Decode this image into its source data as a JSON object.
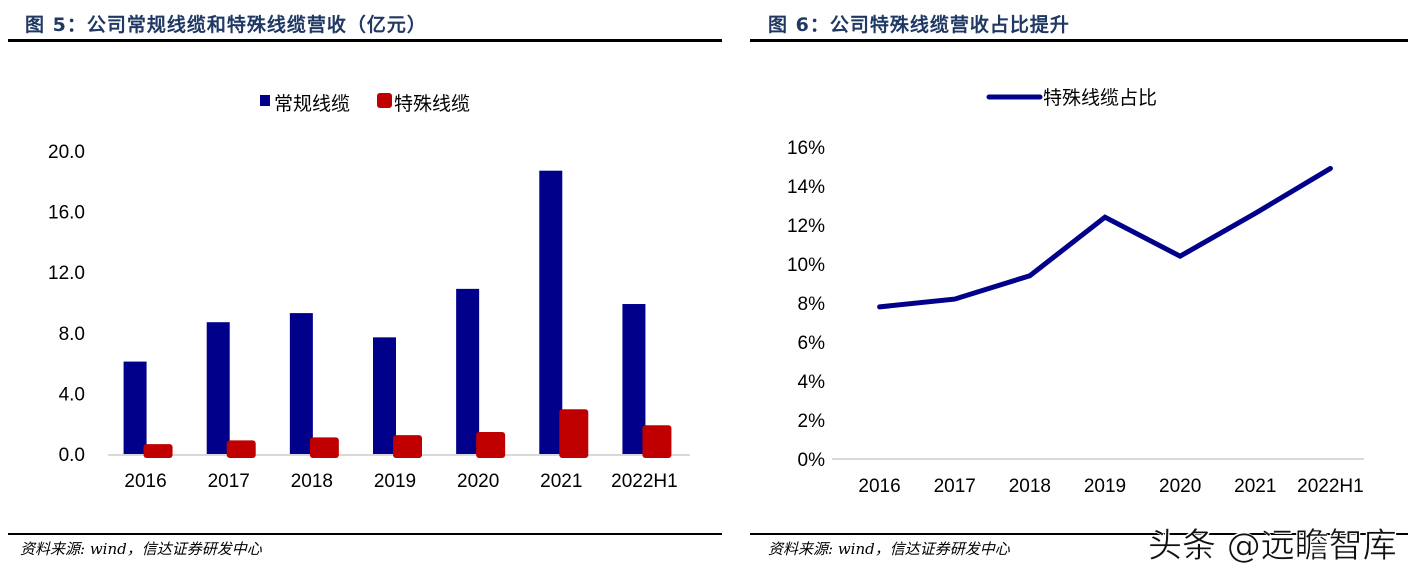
{
  "figures": [
    {
      "title": "图 5：公司常规线缆和特殊线缆营收（亿元）",
      "source": "资料来源: wind，信达证券研发中心"
    },
    {
      "title": "图 6：公司特殊线缆营收占比提升",
      "source": "资料来源: wind，信达证券研发中心"
    }
  ],
  "watermark": "头条 @远瞻智库",
  "chart_data": [
    {
      "type": "bar",
      "title": "公司常规线缆和特殊线缆营收（亿元）",
      "xlabel": "",
      "ylabel": "",
      "categories": [
        "2016",
        "2017",
        "2018",
        "2019",
        "2020",
        "2021",
        "2022H1"
      ],
      "series": [
        {
          "name": "常规线缆",
          "color": "#00008b",
          "values": [
            6.1,
            8.7,
            9.3,
            7.7,
            10.9,
            18.7,
            9.9
          ]
        },
        {
          "name": "特殊线缆",
          "color": "#c00000",
          "values": [
            0.65,
            0.9,
            1.1,
            1.25,
            1.45,
            2.95,
            1.9
          ]
        }
      ],
      "ylim": [
        0,
        20
      ],
      "yticks": [
        "0.0",
        "4.0",
        "8.0",
        "12.0",
        "16.0",
        "20.0"
      ],
      "ytick_values": [
        0,
        4,
        8,
        12,
        16,
        20
      ],
      "grid": false,
      "legend": "top-center"
    },
    {
      "type": "line",
      "title": "公司特殊线缆营收占比提升",
      "xlabel": "",
      "ylabel": "",
      "categories": [
        "2016",
        "2017",
        "2018",
        "2019",
        "2020",
        "2021",
        "2022H1"
      ],
      "series": [
        {
          "name": "特殊线缆占比",
          "color": "#00008b",
          "values": [
            7.8,
            8.2,
            9.4,
            12.4,
            10.4,
            12.6,
            14.9
          ],
          "unit": "%"
        }
      ],
      "ylim": [
        0,
        16
      ],
      "yticks": [
        "0%",
        "2%",
        "4%",
        "6%",
        "8%",
        "10%",
        "12%",
        "14%",
        "16%"
      ],
      "ytick_values": [
        0,
        2,
        4,
        6,
        8,
        10,
        12,
        14,
        16
      ],
      "grid": false,
      "legend": "top-center"
    }
  ]
}
